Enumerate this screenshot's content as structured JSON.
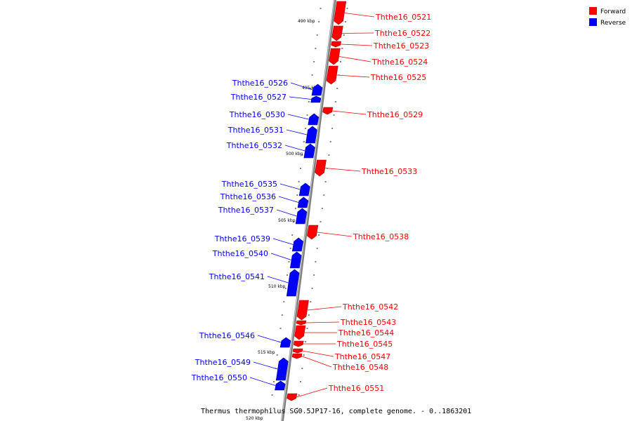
{
  "caption": "Thermus thermophilus SG0.5JP17-16, complete genome. - 0..1863201",
  "legend": [
    {
      "label": "Forward",
      "color": "#ff0000"
    },
    {
      "label": "Reverse",
      "color": "#0000ff"
    }
  ],
  "colors": {
    "forward": "#ff0000",
    "reverse": "#0000ff",
    "backbone": "#808080"
  },
  "axis_labels": [
    "490 kbp",
    "495 kbp",
    "500 kbp",
    "505 kbp",
    "510 kbp",
    "515 kbp",
    "520 kbp"
  ],
  "genes": [
    {
      "name": "Ththe16_0521",
      "strand": "forward"
    },
    {
      "name": "Ththe16_0522",
      "strand": "forward"
    },
    {
      "name": "Ththe16_0523",
      "strand": "forward"
    },
    {
      "name": "Ththe16_0524",
      "strand": "forward"
    },
    {
      "name": "Ththe16_0525",
      "strand": "forward"
    },
    {
      "name": "Ththe16_0526",
      "strand": "reverse"
    },
    {
      "name": "Ththe16_0527",
      "strand": "reverse"
    },
    {
      "name": "Ththe16_0529",
      "strand": "forward"
    },
    {
      "name": "Ththe16_0530",
      "strand": "reverse"
    },
    {
      "name": "Ththe16_0531",
      "strand": "reverse"
    },
    {
      "name": "Ththe16_0532",
      "strand": "reverse"
    },
    {
      "name": "Ththe16_0533",
      "strand": "forward"
    },
    {
      "name": "Ththe16_0535",
      "strand": "reverse"
    },
    {
      "name": "Ththe16_0536",
      "strand": "reverse"
    },
    {
      "name": "Ththe16_0537",
      "strand": "reverse"
    },
    {
      "name": "Ththe16_0538",
      "strand": "forward"
    },
    {
      "name": "Ththe16_0539",
      "strand": "reverse"
    },
    {
      "name": "Ththe16_0540",
      "strand": "reverse"
    },
    {
      "name": "Ththe16_0541",
      "strand": "reverse"
    },
    {
      "name": "Ththe16_0542",
      "strand": "forward"
    },
    {
      "name": "Ththe16_0543",
      "strand": "forward"
    },
    {
      "name": "Ththe16_0544",
      "strand": "forward"
    },
    {
      "name": "Ththe16_0545",
      "strand": "forward"
    },
    {
      "name": "Ththe16_0546",
      "strand": "reverse"
    },
    {
      "name": "Ththe16_0547",
      "strand": "forward"
    },
    {
      "name": "Ththe16_0548",
      "strand": "forward"
    },
    {
      "name": "Ththe16_0549",
      "strand": "reverse"
    },
    {
      "name": "Ththe16_0550",
      "strand": "reverse"
    },
    {
      "name": "Ththe16_0551",
      "strand": "forward"
    }
  ]
}
